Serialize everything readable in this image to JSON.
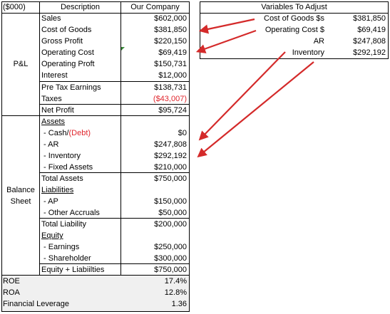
{
  "main_table": {
    "header": {
      "unit": "($000)",
      "description": "Description",
      "company": "Our Company"
    },
    "groups": {
      "pl": "P&L",
      "balance_line1": "Balance",
      "balance_line2": "Sheet"
    },
    "rows": [
      {
        "desc": "Sales",
        "val": "$602,000"
      },
      {
        "desc": "Cost of Goods",
        "val": "$381,850"
      },
      {
        "desc": "Gross Profit",
        "val": "$220,150"
      },
      {
        "desc": "Operating Cost",
        "val": "$69,419"
      },
      {
        "desc": "Operating Proft",
        "val": "$150,731"
      },
      {
        "desc": "Interest",
        "val": "$12,000"
      },
      {
        "desc": "Pre Tax Earnings",
        "val": "$138,731"
      },
      {
        "desc": "Taxes",
        "val": "($43,007)"
      },
      {
        "desc": "Net Profit",
        "val": "$95,724"
      },
      {
        "desc": "Assets",
        "val": ""
      },
      {
        "desc": " - Cash/",
        "desc_red": "(Debt)",
        "val": "$0"
      },
      {
        "desc": " - AR",
        "val": "$247,808"
      },
      {
        "desc": " - Inventory",
        "val": "$292,192"
      },
      {
        "desc": " - Fixed Assets",
        "val": "$210,000"
      },
      {
        "desc": "Total Assets",
        "val": "$750,000"
      },
      {
        "desc": "Liabilities",
        "val": ""
      },
      {
        "desc": " - AP",
        "val": "$150,000"
      },
      {
        "desc": " - Other Accruals",
        "val": "$50,000"
      },
      {
        "desc": "Total Liability",
        "val": "$200,000"
      },
      {
        "desc": "Equity",
        "val": ""
      },
      {
        "desc": " - Earnings",
        "val": "$250,000"
      },
      {
        "desc": " - Shareholder",
        "val": "$300,000"
      },
      {
        "desc": "Equity + Liabiilties",
        "val": "$750,000"
      }
    ],
    "ratios": [
      {
        "label": "ROE",
        "val": "17.4%"
      },
      {
        "label": "ROA",
        "val": "12.8%"
      },
      {
        "label": "Financial Leverage",
        "val": "1.36"
      }
    ]
  },
  "variables_table": {
    "title": "Variables To Adjust",
    "rows": [
      {
        "label": "Cost of Goods $s",
        "val": "$381,850"
      },
      {
        "label": "Operating Cost $",
        "val": "$69,419"
      },
      {
        "label": "AR",
        "val": "$247,808"
      },
      {
        "label": "Inventory",
        "val": "$292,192"
      }
    ]
  },
  "colors": {
    "arrow": "#d42a2a",
    "negative": "#e0262d",
    "ratio_bg": "#f0f0f0"
  }
}
